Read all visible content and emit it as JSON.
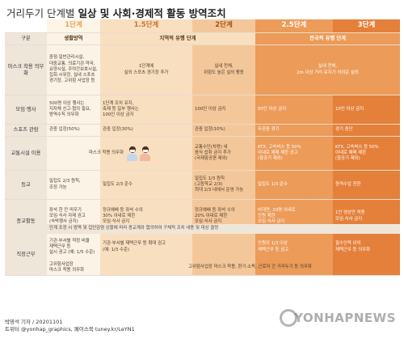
{
  "title_light": "거리두기 단계별 ",
  "title_bold": "일상 및 사회·경제적 활동 방역조치",
  "header_label": "구분",
  "levels": [
    "1단계",
    "1.5단계",
    "2단계",
    "2.5단계",
    "3단계"
  ],
  "phases": {
    "p1": "생활방역",
    "p2": "지역적 유행 단계",
    "p3": "전국적 유행 단계"
  },
  "rows": {
    "mask": {
      "label": "마스크 착용 의무화",
      "c1": "중점·일반관리시설,\n대중교통, 의료기관·약국,\n요양시설, 주야간보호시설,\n집회·시위장, 실내 스포츠\n경기장, 고위험 사업장 등",
      "c15": "1단계에\n실외 스포츠 경기장 추가",
      "c2": "실내 전체,\n위험도 높은 실외 활동",
      "c25_3": "실내 전체,\n2m 이상 거리 유지가 어려운 실외"
    },
    "gathering": {
      "label": "모임·행사",
      "c1": "500명 이상 행사는\n지자체 신고·협의 필요,\n방역수칙 의무화",
      "c15": "1단계 조치 유지,\n축제 등 일부 행사는\n100인 이상 금지",
      "c2": "100인 이상 금지",
      "c25": "50인 이상 금지",
      "c3": "10인 이상 금지"
    },
    "sports": {
      "label": "스포츠 관람",
      "c1": "관중 입장(50%)",
      "c15": "관중 입장(30%)",
      "c2": "관중 입장(10%)",
      "c25": "무관중 경기",
      "c3": "경기 중단"
    },
    "transport": {
      "label": "교통시설 이용",
      "c1_15": "마스크 착용 의무화",
      "c2": "교통수단(차량) 내\n음식 섭취 금지 추가\n(국제항공편 제외)",
      "c25": "KTX, 고속버스 등 50%\n이내로 예매 제한 권고\n(항공기 제외)",
      "c3": "KTX, 고속버스 등 50%\n이내로 예매 제한\n(항공기 제외)"
    },
    "school": {
      "label": "등교",
      "c1": "밀집도 2/3 원칙,\n조정 가능",
      "c15": "밀집도 2/3 준수",
      "c2": "밀집도 1/3 원칙\n(고등학교 2/3)\n최대 2/3 내에서 운영 가능",
      "c25": "밀집도 1/3 준수",
      "c3": "원격수업 전환"
    },
    "religion": {
      "label": "종교활동",
      "c1": "좌석 한 칸 띄우기\n모임·식사 자제 권고\n(숙박행사 금지)",
      "c15": "정규예배 등 좌석 수의\n30% 이내로 제한\n모임·식사 금지",
      "c2": "정규예배 등 좌석 수의\n20% 이내로 제한\n모임·식사 금지",
      "c25": "비대면, 20명 이내로\n인원 제한\n모임·식사 금지",
      "c3": "1인 영상만 허용\n모임·식사 금지",
      "note": "단계 조정 시 방역 및 집단감염 상황에 따라 종교계와 협의하여 구체적 조치 내용 및 대상 결정"
    },
    "work": {
      "label": "직장근무",
      "c1": "기관·부서별 적정 비율\n재택근무 등\n실시 권고 (예: 1/5 수준)",
      "c15_2": "기관·부서별 재택근무 등 확대 권고\n(예: 1/3 수준)",
      "c25": "인원의 1/3 이상\n재택근무 등 권고",
      "c3": "필수인력 이외\n재택근무 등 의무화",
      "c1b": "고위험사업장\n마스크 착용 의무화",
      "c15_3b": "고위험사업장 마스크 착용, 환기·소독, 근로자 간 거리두기 등 의무화"
    }
  },
  "footer": {
    "reporter": "박영석 기자 / 20201101",
    "social": "트위터 @yonhap_graphics, 페이스북 tuney.kr/LeYN1"
  },
  "watermark": "YONHAPNEWS",
  "colors": {
    "level1": "#fbf3e6",
    "level15": "#f8dfc0",
    "level2": "#f4c79a",
    "level25": "#ec9b58",
    "level3": "#e4803a"
  }
}
